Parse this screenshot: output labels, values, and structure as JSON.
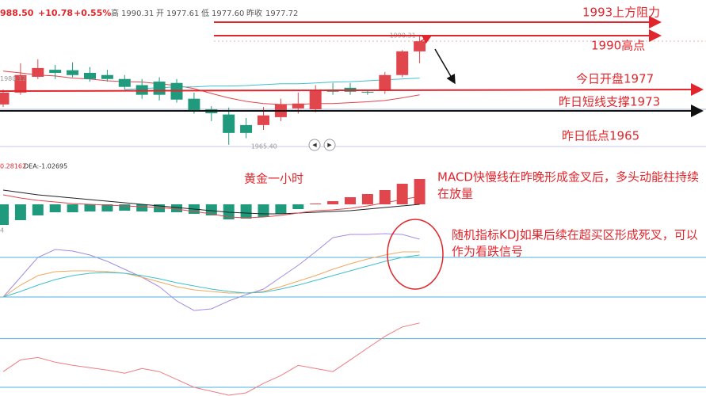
{
  "header": {
    "price": "988.50",
    "change": "+10.78",
    "percent": "+0.55%",
    "items": [
      [
        "高",
        "1990.31"
      ],
      [
        "开",
        "1977.61"
      ],
      [
        "低",
        "1977.60"
      ],
      [
        "昨收",
        "1977.72"
      ]
    ]
  },
  "annotations": {
    "resistance": "1993上方阻力",
    "high": "1990高点",
    "open": "今日开盘1977",
    "support": "昨日短线支撑1973",
    "low": "昨日低点1965",
    "period": "黄金一小时",
    "macd_note": [
      "MACD快慢线在昨晚形成金叉后，多头动能柱持续",
      "在放量"
    ],
    "kdj_note": [
      "随机指标KDJ如果后续在超买区形成死叉，可以",
      "作为看跌信号"
    ]
  },
  "chart_data": [
    {
      "type": "candlestick",
      "up_color": "#e0464c",
      "down_color": "#1f9a7c",
      "ylim": [
        1964.1,
        1994.8
      ],
      "left_value": 1980.12,
      "high_label": "1990.31",
      "low_label": "1965.40",
      "open": [
        1974.6,
        1977.3,
        1980.9,
        1982.5,
        1982.4,
        1981.8,
        1981.3,
        1980.4,
        1979.0,
        1979.8,
        1979.5,
        1975.9,
        1973.5,
        1972.3,
        1969.9,
        1969.9,
        1971.7,
        1973.7,
        1973.5,
        1978.0,
        1978.4,
        1977.5,
        1977.7,
        1981.3,
        1986.7
      ],
      "close": [
        1977.3,
        1981.3,
        1982.9,
        1981.8,
        1981.3,
        1980.4,
        1980.4,
        1978.6,
        1976.8,
        1976.8,
        1975.7,
        1973.2,
        1972.6,
        1968.1,
        1968.1,
        1972.1,
        1974.6,
        1974.8,
        1977.7,
        1977.5,
        1977.5,
        1977.3,
        1981.3,
        1986.7,
        1989.0
      ],
      "high": [
        1978.0,
        1984.0,
        1984.9,
        1983.6,
        1984.2,
        1983.1,
        1982.5,
        1981.3,
        1980.4,
        1980.8,
        1980.4,
        1977.3,
        1974.2,
        1973.9,
        1971.5,
        1974.0,
        1975.9,
        1977.3,
        1979.0,
        1979.5,
        1979.5,
        1978.0,
        1982.0,
        1987.0,
        1990.31
      ],
      "low": [
        1974.0,
        1976.8,
        1980.4,
        1980.4,
        1980.8,
        1979.8,
        1979.8,
        1978.0,
        1975.9,
        1975.5,
        1975.0,
        1972.5,
        1970.8,
        1965.4,
        1966.9,
        1968.8,
        1970.8,
        1972.5,
        1972.8,
        1976.8,
        1976.8,
        1976.8,
        1977.0,
        1980.8,
        1984.0
      ],
      "series": [
        {
          "color": "#e0464c",
          "values": [
            1982.2,
            1981.8,
            1981.3,
            1981.1,
            1980.6,
            1980.4,
            1980.0,
            1979.8,
            1979.7,
            1979.3,
            1978.9,
            1978.2,
            1977.1,
            1976.1,
            1975.3,
            1974.8,
            1974.6,
            1974.6,
            1974.8,
            1974.8,
            1975.0,
            1975.2,
            1975.5,
            1976.1,
            1976.8
          ]
        },
        {
          "color": "#3ec0cf",
          "values": [
            null,
            null,
            null,
            null,
            null,
            null,
            null,
            1978.0,
            1978.2,
            1978.4,
            1978.6,
            1978.6,
            1978.8,
            1978.8,
            1978.9,
            1979.1,
            1979.3,
            1979.3,
            1979.5,
            1979.7,
            1979.8,
            1980.0,
            1980.2,
            1980.4,
            1980.6
          ]
        }
      ]
    },
    {
      "type": "bar",
      "up_color": "#e0464c",
      "down_color": "#1f9a7c",
      "ylim": [
        -4.2,
        5.3
      ],
      "legend": [
        "0.28162",
        "DEA:-1.02695"
      ],
      "stub": "4",
      "values": [
        -2.6,
        -2.0,
        -1.4,
        -1.0,
        -1.0,
        -0.9,
        -0.9,
        -0.8,
        -0.9,
        -1.0,
        -1.0,
        -1.2,
        -1.4,
        -1.9,
        -1.8,
        -1.6,
        -1.2,
        -0.6,
        0.1,
        0.4,
        0.9,
        1.3,
        1.8,
        2.6,
        3.2
      ],
      "series": [
        {
          "color": "#222222",
          "values": [
            1.8,
            1.5,
            1.2,
            1.0,
            0.8,
            0.6,
            0.4,
            0.2,
            0,
            -0.2,
            -0.4,
            -0.6,
            -0.8,
            -1.0,
            -1.1,
            -1.2,
            -1.2,
            -1.1,
            -1.0,
            -0.9,
            -0.8,
            -0.6,
            -0.4,
            -0.2,
            0
          ]
        },
        {
          "color": "#e0464c",
          "values": [
            1.2,
            0.8,
            0.5,
            0.3,
            0.1,
            0,
            -0.1,
            -0.2,
            -0.3,
            -0.4,
            -0.6,
            -0.9,
            -1.2,
            -1.6,
            -1.7,
            -1.6,
            -1.4,
            -1.1,
            -0.8,
            -0.7,
            -0.5,
            -0.2,
            0.2,
            0.6,
            1.0
          ]
        }
      ]
    },
    {
      "type": "line",
      "ylim": [
        -4,
        134
      ],
      "ref_lines": [
        20,
        80
      ],
      "ref_color": "#4fb3d9",
      "series": [
        {
          "color": "#a58ce0",
          "values": [
            20,
            50,
            80,
            92,
            89.6,
            83.6,
            74,
            62,
            50,
            35.6,
            14,
            -0.4,
            2,
            14,
            23.6,
            32,
            50,
            68,
            88.4,
            110,
            114.8,
            114.8,
            116,
            114.8,
            107.6
          ]
        },
        {
          "color": "#f0a860",
          "values": [
            20,
            38,
            52.4,
            58.4,
            59.6,
            59.6,
            58.4,
            56,
            50,
            42.8,
            35.6,
            30.8,
            28.4,
            26,
            26,
            28.4,
            35.6,
            44,
            52.4,
            62,
            70.4,
            77.6,
            83.6,
            88.4,
            88.4
          ]
        },
        {
          "color": "#3ec0cf",
          "values": [
            20,
            28.4,
            38,
            46.4,
            52.4,
            56,
            57.2,
            56,
            52.4,
            47.6,
            41.6,
            36.8,
            32,
            28.4,
            26,
            27.2,
            32,
            38,
            45.2,
            52.4,
            59.6,
            66.8,
            74,
            80,
            83.6
          ]
        }
      ]
    },
    {
      "type": "line",
      "ylim": [
        9.3,
        107
      ],
      "ref_lines": [
        20,
        80
      ],
      "ref_color": "#4fb3d9",
      "series": [
        {
          "color": "#ef7b84",
          "values": [
            39.4,
            53.9,
            56.8,
            51.0,
            47.1,
            44.2,
            41.3,
            37.4,
            43.2,
            39.4,
            29.7,
            20,
            15.2,
            10.3,
            13.2,
            24.8,
            34.5,
            47.1,
            43.2,
            39.4,
            53.9,
            68.4,
            82.9,
            94.5,
            99.4
          ]
        }
      ]
    }
  ]
}
